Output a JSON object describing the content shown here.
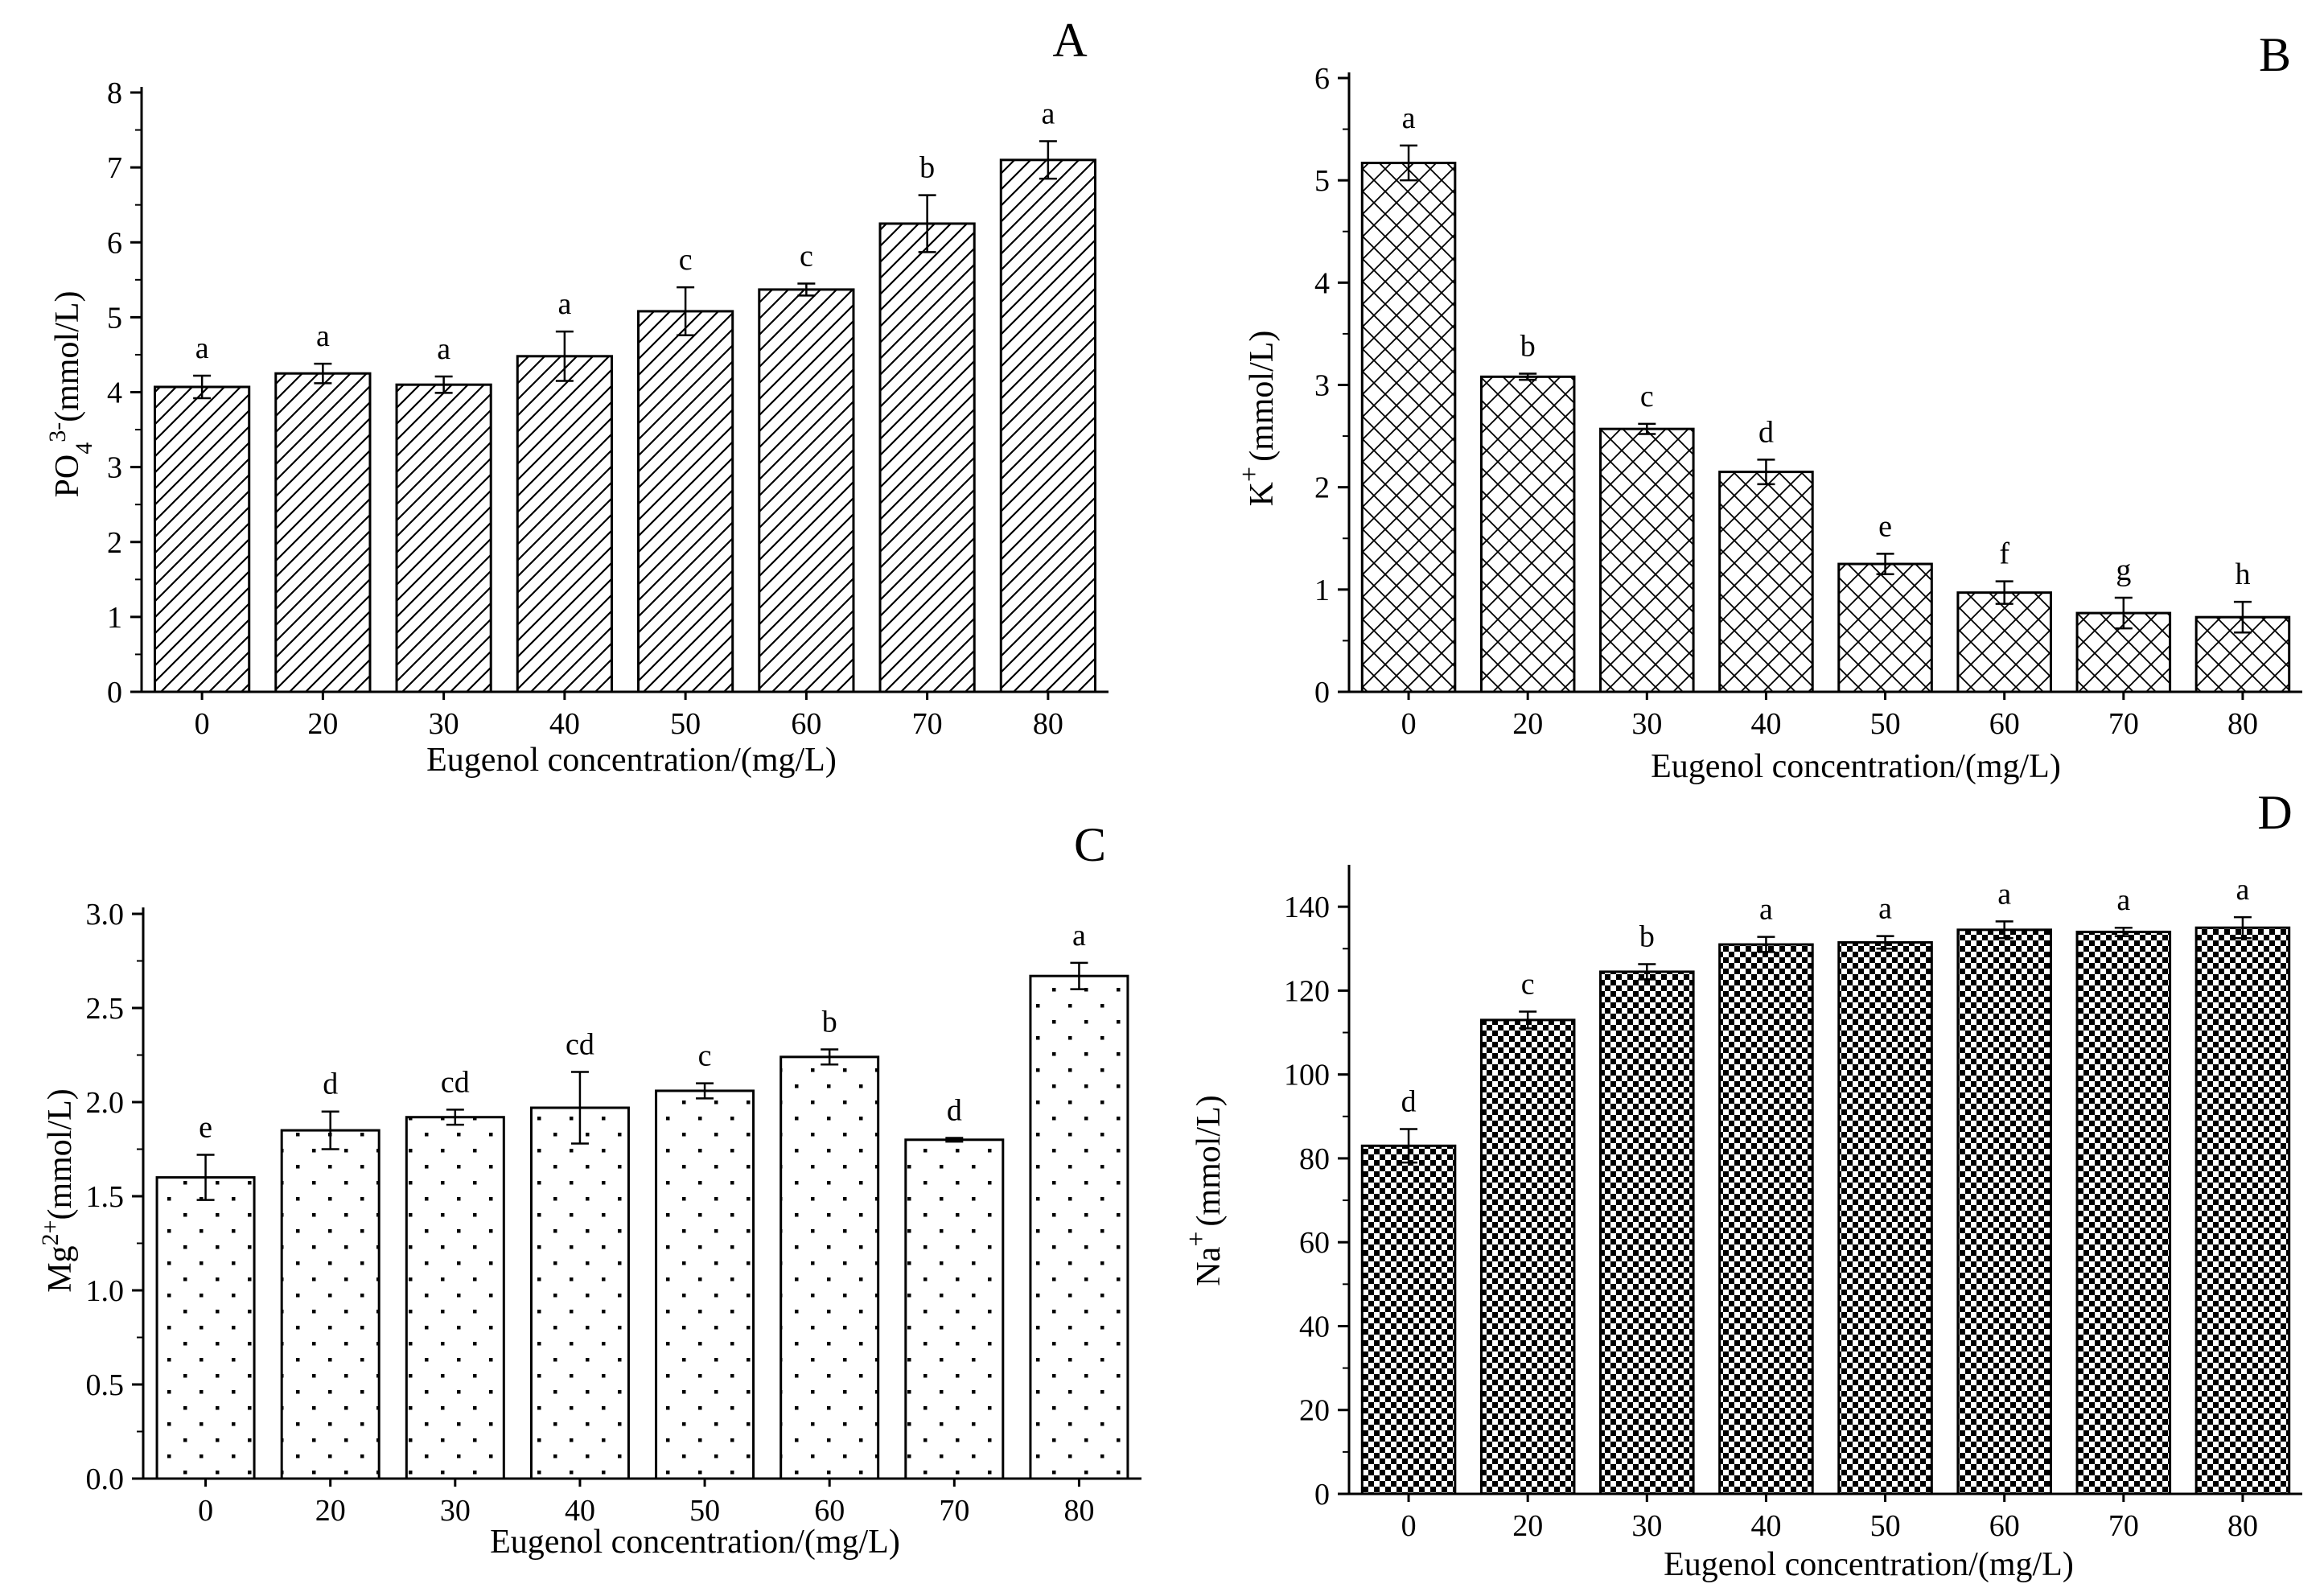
{
  "chart_data": [
    {
      "panel_label": "A",
      "type": "bar",
      "fill_pattern": "diagonal-hatch",
      "title": "",
      "xlabel": "Eugenol concentration/(mg/L)",
      "ylabel_main": "PO",
      "ylabel_sub": "4",
      "ylabel_sup": "3-",
      "ylabel_unit": "(mmol/L)",
      "categories": [
        "0",
        "20",
        "30",
        "40",
        "50",
        "60",
        "70",
        "80"
      ],
      "values": [
        4.07,
        4.25,
        4.1,
        4.48,
        5.08,
        5.37,
        6.25,
        7.1
      ],
      "errors": [
        0.15,
        0.13,
        0.11,
        0.33,
        0.32,
        0.08,
        0.38,
        0.25
      ],
      "significance": [
        "a",
        "a",
        "a",
        "a",
        "c",
        "c",
        "b",
        "a"
      ],
      "ylim": [
        0,
        8
      ],
      "yticks": [
        "0",
        "1",
        "2",
        "3",
        "4",
        "5",
        "6",
        "7",
        "8"
      ],
      "grid": false
    },
    {
      "panel_label": "B",
      "type": "bar",
      "fill_pattern": "cross-hatch",
      "title": "",
      "xlabel": "Eugenol  concentration/(mg/L)",
      "ylabel_main": "K",
      "ylabel_sub": "",
      "ylabel_sup": "+",
      "ylabel_unit": "(mmol/L)",
      "categories": [
        "0",
        "20",
        "30",
        "40",
        "50",
        "60",
        "70",
        "80"
      ],
      "values": [
        5.17,
        3.08,
        2.57,
        2.15,
        1.25,
        0.97,
        0.77,
        0.73
      ],
      "errors": [
        0.17,
        0.03,
        0.05,
        0.12,
        0.1,
        0.11,
        0.15,
        0.15
      ],
      "significance": [
        "a",
        "b",
        "c",
        "d",
        "e",
        "f",
        "g",
        "h"
      ],
      "ylim": [
        0,
        6
      ],
      "yticks": [
        "0",
        "1",
        "2",
        "3",
        "4",
        "5",
        "6"
      ],
      "grid": false
    },
    {
      "panel_label": "C",
      "type": "bar",
      "fill_pattern": "dots",
      "title": "",
      "xlabel": "Eugenol  concentration/(mg/L)",
      "ylabel_main": "Mg",
      "ylabel_sub": "",
      "ylabel_sup": "2+",
      "ylabel_unit": "(mmol/L)",
      "categories": [
        "0",
        "20",
        "30",
        "40",
        "50",
        "60",
        "70",
        "80"
      ],
      "values": [
        1.6,
        1.85,
        1.92,
        1.97,
        2.06,
        2.24,
        1.8,
        2.67
      ],
      "errors": [
        0.12,
        0.1,
        0.04,
        0.19,
        0.04,
        0.04,
        0.01,
        0.07
      ],
      "significance": [
        "e",
        "d",
        "cd",
        "cd",
        "c",
        "b",
        "d",
        "a"
      ],
      "ylim": [
        0,
        3
      ],
      "yticks": [
        "0.0",
        "0.5",
        "1.0",
        "1.5",
        "2.0",
        "2.5",
        "3.0"
      ],
      "grid": false
    },
    {
      "panel_label": "D",
      "type": "bar",
      "fill_pattern": "checkerboard",
      "title": "",
      "xlabel": "Eugenol  concentration/(mg/L)",
      "ylabel_main": "Na",
      "ylabel_sub": "",
      "ylabel_sup": "+",
      "ylabel_unit": "(mmol/L)",
      "categories": [
        "0",
        "20",
        "30",
        "40",
        "50",
        "60",
        "70",
        "80"
      ],
      "values": [
        83,
        113,
        124.5,
        131,
        131.5,
        134.5,
        134,
        135
      ],
      "errors": [
        4,
        2,
        1.8,
        1.8,
        1.5,
        2,
        1,
        2.5
      ],
      "significance": [
        "d",
        "c",
        "b",
        "a",
        "a",
        "a",
        "a",
        "a"
      ],
      "ylim": [
        0,
        150
      ],
      "yticks": [
        "0",
        "20",
        "40",
        "60",
        "80",
        "100",
        "120",
        "140"
      ],
      "grid": false
    }
  ]
}
